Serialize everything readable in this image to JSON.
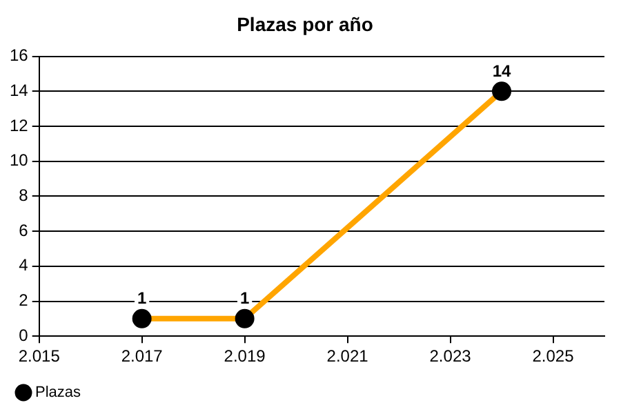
{
  "chart_data": {
    "type": "line",
    "title": "Plazas por año",
    "x": [
      2.017,
      2.019,
      2.024
    ],
    "series": [
      {
        "name": "Plazas",
        "color": "#ffa500",
        "values": [
          1,
          1,
          14
        ]
      }
    ],
    "xlim": [
      2.015,
      2.026
    ],
    "xticks": [
      2.015,
      2.017,
      2.019,
      2.021,
      2.023,
      2.025
    ],
    "ylim": [
      0,
      16
    ],
    "yticks": [
      0,
      2,
      4,
      6,
      8,
      10,
      12,
      14,
      16
    ],
    "grid": "y",
    "legend": "bottom left",
    "marker": "circle",
    "line_style": "solid",
    "data_labels": true
  }
}
